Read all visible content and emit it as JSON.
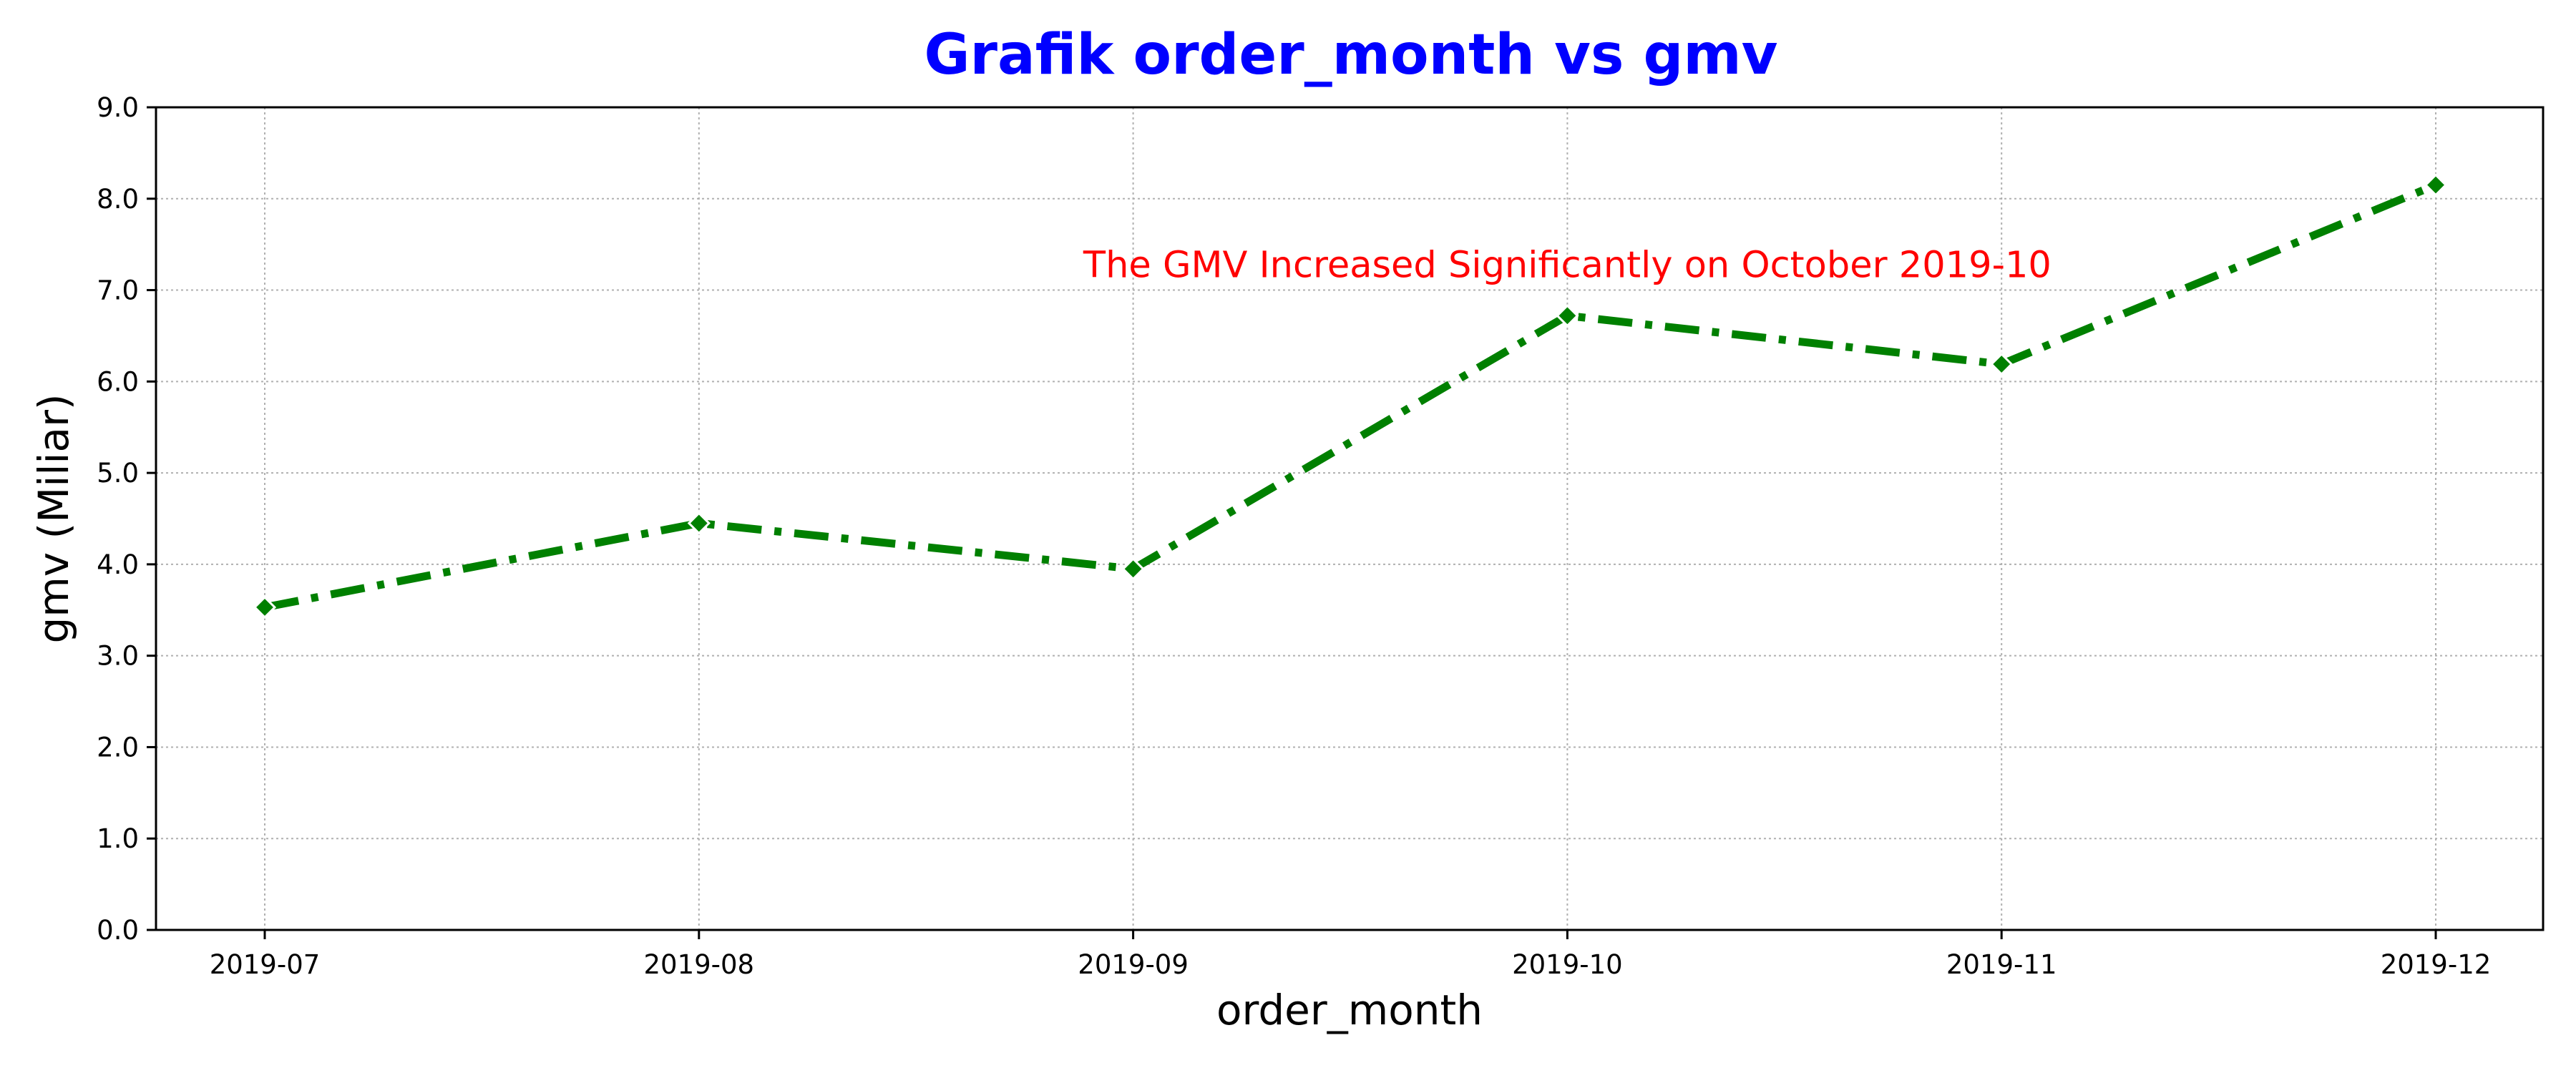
{
  "chart_data": {
    "type": "line",
    "title": "Grafik order_month vs gmv",
    "xlabel": "order_month",
    "ylabel": "gmv (Miliar)",
    "categories": [
      "2019-07",
      "2019-08",
      "2019-09",
      "2019-10",
      "2019-11",
      "2019-12"
    ],
    "series": [
      {
        "values": [
          3.53,
          4.45,
          3.95,
          6.72,
          6.19,
          8.15
        ]
      }
    ],
    "ylim": [
      0,
      9
    ],
    "yticks": [
      "0.0",
      "1.0",
      "2.0",
      "3.0",
      "4.0",
      "5.0",
      "6.0",
      "7.0",
      "8.0",
      "9.0"
    ],
    "grid": true,
    "line_style": "dash-dot",
    "marker": "diamond",
    "annotation": {
      "text": "The GMV Increased Significantly on October 2019-10",
      "x": 3,
      "y": 7.0
    },
    "colors": {
      "title": "#0000ff",
      "line": "#008000",
      "annotation": "#ff0000",
      "grid": "#b0b0b0"
    }
  }
}
